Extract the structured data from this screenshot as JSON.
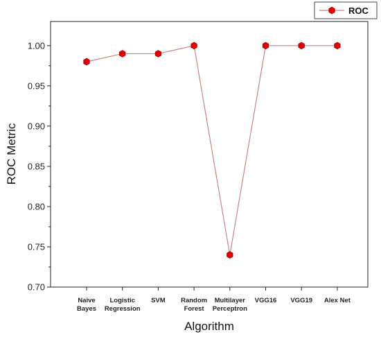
{
  "chart_data": {
    "type": "line",
    "categories": [
      [
        "Naïve",
        "Bayes"
      ],
      [
        "Logistic",
        "Regression"
      ],
      [
        "SVM"
      ],
      [
        "Random",
        "Forest"
      ],
      [
        "Multilayer",
        "Perceptron"
      ],
      [
        "VGG16"
      ],
      [
        "VGG19"
      ],
      [
        "Alex Net"
      ]
    ],
    "series": [
      {
        "name": "ROC",
        "values": [
          0.98,
          0.99,
          0.99,
          1.0,
          0.74,
          1.0,
          1.0,
          1.0
        ],
        "color": "#e00000",
        "line_color": "#c98080",
        "marker": "hexagon"
      }
    ],
    "xlabel": "Algorithm",
    "ylabel": "ROC Metric",
    "ylim": [
      0.7,
      1.03
    ],
    "yticks": [
      "0.70",
      "0.75",
      "0.80",
      "0.85",
      "0.90",
      "0.95",
      "1.00"
    ],
    "grid": false,
    "legend_position": "top-right"
  }
}
